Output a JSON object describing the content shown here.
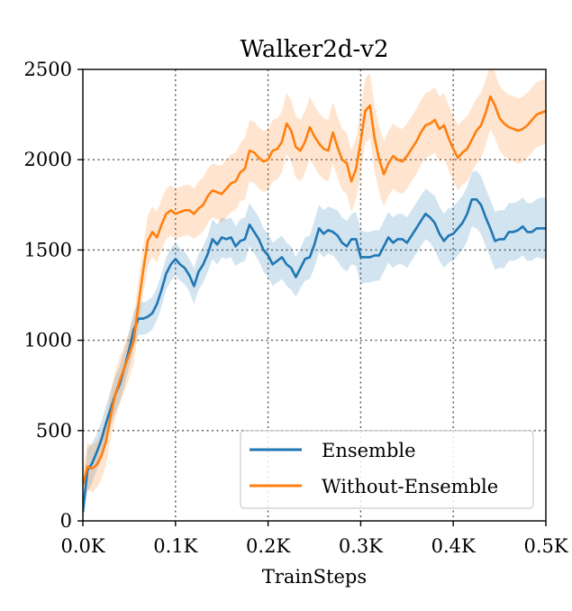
{
  "chart_data": {
    "type": "line",
    "title": "Walker2d-v2",
    "xlabel": "TrainSteps",
    "ylabel": "",
    "xlim": [
      0,
      500
    ],
    "ylim": [
      0,
      2500
    ],
    "x_unit": "K",
    "x_ticks": [
      0,
      100,
      200,
      300,
      400,
      500
    ],
    "x_tick_labels": [
      "0.0K",
      "0.1K",
      "0.2K",
      "0.3K",
      "0.4K",
      "0.5K"
    ],
    "y_ticks": [
      0,
      500,
      1000,
      1500,
      2000,
      2500
    ],
    "y_tick_labels": [
      "0",
      "500",
      "1000",
      "1500",
      "2000",
      "2500"
    ],
    "grid": true,
    "legend_position": "lower-right",
    "series": [
      {
        "name": "Ensemble",
        "color": "#1f77b4",
        "band_color": "#1f77b4",
        "x": [
          0,
          5,
          10,
          15,
          20,
          25,
          30,
          35,
          40,
          45,
          50,
          55,
          60,
          65,
          70,
          75,
          80,
          85,
          90,
          95,
          100,
          105,
          110,
          115,
          120,
          125,
          130,
          135,
          140,
          145,
          150,
          155,
          160,
          165,
          170,
          175,
          180,
          185,
          190,
          195,
          200,
          205,
          210,
          215,
          220,
          225,
          230,
          235,
          240,
          245,
          250,
          255,
          260,
          265,
          270,
          275,
          280,
          285,
          290,
          295,
          300,
          305,
          310,
          315,
          320,
          325,
          330,
          335,
          340,
          345,
          350,
          355,
          360,
          365,
          370,
          375,
          380,
          385,
          390,
          395,
          400,
          405,
          410,
          415,
          420,
          425,
          430,
          435,
          440,
          445,
          450,
          455,
          460,
          465,
          470,
          475,
          480,
          485,
          490,
          495,
          500
        ],
        "y": [
          50,
          280,
          320,
          380,
          450,
          540,
          620,
          700,
          760,
          850,
          950,
          1060,
          1120,
          1120,
          1130,
          1150,
          1200,
          1280,
          1370,
          1420,
          1450,
          1420,
          1400,
          1360,
          1300,
          1380,
          1420,
          1480,
          1560,
          1530,
          1570,
          1560,
          1570,
          1520,
          1550,
          1560,
          1640,
          1600,
          1560,
          1500,
          1470,
          1420,
          1440,
          1460,
          1420,
          1400,
          1350,
          1400,
          1450,
          1460,
          1530,
          1620,
          1590,
          1610,
          1600,
          1580,
          1540,
          1520,
          1560,
          1560,
          1460,
          1460,
          1460,
          1470,
          1470,
          1520,
          1570,
          1540,
          1560,
          1560,
          1540,
          1580,
          1620,
          1660,
          1700,
          1680,
          1650,
          1590,
          1550,
          1580,
          1590,
          1620,
          1650,
          1700,
          1780,
          1780,
          1750,
          1680,
          1620,
          1550,
          1560,
          1560,
          1600,
          1600,
          1610,
          1630,
          1600,
          1600,
          1620,
          1620,
          1620
        ],
        "band": [
          60,
          120,
          110,
          100,
          100,
          100,
          100,
          100,
          100,
          100,
          100,
          100,
          90,
          90,
          90,
          90,
          90,
          90,
          90,
          90,
          90,
          90,
          90,
          90,
          100,
          100,
          100,
          100,
          110,
          110,
          110,
          110,
          110,
          110,
          120,
          120,
          120,
          120,
          120,
          120,
          120,
          120,
          120,
          120,
          120,
          120,
          110,
          110,
          120,
          120,
          130,
          130,
          130,
          130,
          130,
          140,
          140,
          140,
          140,
          150,
          150,
          140,
          140,
          140,
          140,
          140,
          140,
          140,
          140,
          140,
          140,
          140,
          140,
          140,
          140,
          140,
          150,
          150,
          150,
          150,
          150,
          150,
          150,
          150,
          150,
          160,
          160,
          160,
          160,
          160,
          160,
          160,
          160,
          160,
          160,
          160,
          160,
          160,
          160,
          170,
          170
        ]
      },
      {
        "name": "Without-Ensemble",
        "color": "#ff7f0e",
        "band_color": "#ff7f0e",
        "x": [
          0,
          5,
          10,
          15,
          20,
          25,
          30,
          35,
          40,
          45,
          50,
          55,
          60,
          65,
          70,
          75,
          80,
          85,
          90,
          95,
          100,
          105,
          110,
          115,
          120,
          125,
          130,
          135,
          140,
          145,
          150,
          155,
          160,
          165,
          170,
          175,
          180,
          185,
          190,
          195,
          200,
          205,
          210,
          215,
          220,
          225,
          230,
          235,
          240,
          245,
          250,
          255,
          260,
          265,
          270,
          275,
          280,
          285,
          290,
          295,
          300,
          305,
          310,
          315,
          320,
          325,
          330,
          335,
          340,
          345,
          350,
          355,
          360,
          365,
          370,
          375,
          380,
          385,
          390,
          395,
          400,
          405,
          410,
          415,
          420,
          425,
          430,
          435,
          440,
          445,
          450,
          455,
          460,
          465,
          470,
          475,
          480,
          485,
          490,
          495,
          500
        ],
        "y": [
          200,
          300,
          290,
          310,
          360,
          440,
          580,
          700,
          780,
          850,
          920,
          1000,
          1200,
          1380,
          1550,
          1600,
          1570,
          1640,
          1700,
          1720,
          1700,
          1710,
          1720,
          1720,
          1700,
          1730,
          1750,
          1800,
          1830,
          1820,
          1810,
          1840,
          1870,
          1880,
          1930,
          1950,
          2050,
          2040,
          2010,
          1990,
          2000,
          2050,
          2060,
          2100,
          2200,
          2160,
          2070,
          2050,
          2100,
          2180,
          2130,
          2090,
          2060,
          2050,
          2150,
          2070,
          2000,
          1980,
          1880,
          1950,
          2100,
          2270,
          2300,
          2120,
          2000,
          1920,
          1980,
          2020,
          2000,
          1990,
          2020,
          2060,
          2100,
          2150,
          2190,
          2200,
          2220,
          2170,
          2190,
          2120,
          2060,
          2010,
          2040,
          2060,
          2110,
          2160,
          2190,
          2260,
          2350,
          2300,
          2230,
          2200,
          2180,
          2170,
          2160,
          2170,
          2190,
          2220,
          2250,
          2260,
          2270
        ],
        "band": [
          80,
          130,
          130,
          130,
          130,
          130,
          130,
          130,
          130,
          130,
          130,
          130,
          130,
          130,
          140,
          140,
          140,
          140,
          140,
          140,
          140,
          140,
          140,
          140,
          140,
          150,
          150,
          150,
          150,
          150,
          160,
          160,
          160,
          160,
          160,
          170,
          170,
          170,
          170,
          170,
          170,
          170,
          170,
          170,
          170,
          170,
          170,
          170,
          170,
          170,
          170,
          170,
          170,
          170,
          170,
          170,
          170,
          170,
          170,
          170,
          180,
          180,
          180,
          180,
          180,
          180,
          180,
          180,
          180,
          180,
          180,
          180,
          180,
          180,
          180,
          180,
          180,
          180,
          180,
          180,
          180,
          180,
          180,
          180,
          180,
          180,
          180,
          180,
          180,
          180,
          180,
          180,
          180,
          180,
          180,
          180,
          180,
          180,
          180,
          180,
          180
        ]
      }
    ]
  }
}
